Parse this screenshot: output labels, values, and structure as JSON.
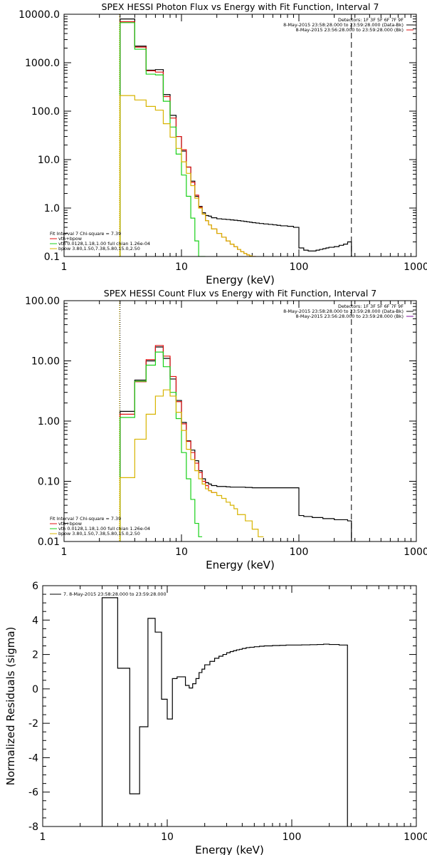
{
  "colors": {
    "background": "#ffffff",
    "axes": "#000000",
    "observed": "#000000",
    "total": "#e01010",
    "vth": "#18d018",
    "bpow": "#d8b400"
  },
  "chart_data": [
    {
      "type": "line",
      "title": "SPEX HESSI Photon Flux vs Energy with Fit Function, Interval 7",
      "xlabel": "Energy (keV)",
      "ylabel": "",
      "xscale": "log",
      "yscale": "log",
      "xlim": [
        1,
        1000
      ],
      "ylim": [
        0.1,
        10000
      ],
      "xticks": [
        "1",
        "10",
        "100",
        "1000"
      ],
      "yticks": [
        "0.1",
        "1.0",
        "10.0",
        "100.0",
        "1000.0",
        "10000.0"
      ],
      "vlines": [
        3,
        280
      ],
      "header_right": [
        "Detectors: 1F 3F 5F 6F 7F 9F",
        "8-May-2015 23:58:28.000 to 23:59:28.000 (Data-Bk)",
        "8-May-2015 23:56:28.000 to 23:59:28.000 (Bk)"
      ],
      "fit_text": [
        "Fit Interval 7   Chi-square = 7.39",
        "vth+bpow",
        "vth 0.0128,1.18,1.00  full chian 1.26e-04",
        "bpow 3.80,1.50,7.38,5.80,15.0,2.50"
      ],
      "series": [
        {
          "key": "observed",
          "color": "#000000",
          "edges": [
            3,
            3.5,
            4,
            4.5,
            5,
            5.5,
            6,
            6.5,
            7,
            7.5,
            8,
            8.5,
            9,
            10,
            11,
            12,
            13,
            14,
            15,
            16,
            17,
            18,
            20,
            22,
            24,
            26,
            28,
            30,
            32,
            34,
            36,
            38,
            40,
            43,
            46,
            50,
            55,
            60,
            65,
            70,
            80,
            90,
            100,
            110,
            120,
            130,
            140,
            150,
            160,
            170,
            180,
            200,
            220,
            240,
            260,
            280
          ],
          "values": [
            8000,
            8000,
            2200,
            2200,
            700,
            700,
            720,
            720,
            220,
            220,
            82,
            82,
            30,
            15,
            7,
            3.6,
            1.75,
            1.08,
            0.8,
            0.7,
            0.68,
            0.63,
            0.6,
            0.59,
            0.58,
            0.57,
            0.56,
            0.55,
            0.54,
            0.53,
            0.52,
            0.51,
            0.5,
            0.49,
            0.48,
            0.47,
            0.46,
            0.45,
            0.44,
            0.43,
            0.42,
            0.4,
            0.15,
            0.135,
            0.13,
            0.13,
            0.135,
            0.14,
            0.145,
            0.15,
            0.155,
            0.16,
            0.17,
            0.18,
            0.2
          ]
        },
        {
          "key": "total",
          "color": "#e01010",
          "edges": [
            3,
            3.5,
            4,
            4.5,
            5,
            5.5,
            6,
            6.5,
            7,
            7.5,
            8,
            8.5,
            9,
            10,
            11,
            12,
            13,
            14,
            15,
            16,
            17,
            18,
            20,
            22,
            24,
            26,
            28,
            30,
            32,
            34,
            36,
            38,
            40,
            43
          ],
          "values": [
            7000,
            7000,
            2100,
            2100,
            680,
            680,
            640,
            640,
            200,
            200,
            72,
            72,
            30,
            16,
            7,
            3.4,
            1.85,
            1.04,
            0.75,
            0.55,
            0.45,
            0.37,
            0.3,
            0.25,
            0.21,
            0.18,
            0.16,
            0.14,
            0.125,
            0.115,
            0.108,
            0.103,
            0.1
          ]
        },
        {
          "key": "vth",
          "color": "#18d018",
          "edges": [
            3,
            3.5,
            4,
            4.5,
            5,
            5.5,
            6,
            6.5,
            7,
            7.5,
            8,
            8.5,
            9,
            10,
            11,
            12,
            13,
            14,
            15,
            16
          ],
          "values": [
            6700,
            6700,
            1900,
            1900,
            580,
            580,
            560,
            560,
            160,
            160,
            47,
            47,
            13,
            4.8,
            1.75,
            0.62,
            0.21,
            0.1,
            0.1
          ]
        },
        {
          "key": "bpow",
          "color": "#d8b400",
          "edges": [
            3,
            3.5,
            4,
            4.5,
            5,
            5.5,
            6,
            6.5,
            7,
            7.5,
            8,
            8.5,
            9,
            10,
            11,
            12,
            13,
            14,
            15,
            16,
            17,
            18,
            20,
            22,
            24,
            26,
            28,
            30,
            32,
            34,
            36,
            38,
            40,
            43
          ],
          "values": [
            210,
            210,
            170,
            170,
            125,
            125,
            105,
            105,
            55,
            55,
            29,
            29,
            17,
            9,
            5.2,
            2.9,
            1.6,
            1.0,
            0.75,
            0.55,
            0.45,
            0.37,
            0.3,
            0.25,
            0.21,
            0.18,
            0.16,
            0.14,
            0.125,
            0.115,
            0.108,
            0.103,
            0.1
          ]
        }
      ]
    },
    {
      "type": "line",
      "title": "SPEX HESSI Count Flux vs Energy with Fit Function, Interval 7",
      "xlabel": "Energy (keV)",
      "ylabel": "",
      "xscale": "log",
      "yscale": "log",
      "xlim": [
        1,
        1000
      ],
      "ylim": [
        0.01,
        100
      ],
      "xticks": [
        "1",
        "10",
        "100",
        "1000"
      ],
      "yticks": [
        "0.01",
        "0.10",
        "1.00",
        "10.00",
        "100.00"
      ],
      "vlines": [
        3,
        280
      ],
      "header_right": [
        "Detectors: 1F 3F 5F 6F 7F 9F",
        "8-May-2015 23:58:28.000 to 23:59:28.000 (Data-Bk)",
        "8-May-2015 23:56:28.000 to 23:59:28.000 (Bk)"
      ],
      "fit_text": [
        "Fit Interval 7   Chi-square = 7.39",
        "vth+bpow",
        "vth 0.0128,1.18,1.00  full chian 1.26e-04",
        "bpow 3.80,1.50,7.38,5.80,15.0,2.50"
      ],
      "series": [
        {
          "key": "observed",
          "color": "#000000",
          "edges": [
            3,
            4,
            5,
            6,
            6.5,
            7,
            7.5,
            8,
            8.5,
            9,
            10,
            11,
            12,
            13,
            14,
            15,
            16,
            17,
            18,
            20,
            22,
            24,
            26,
            28,
            30,
            35,
            40,
            45,
            50,
            60,
            70,
            80,
            90,
            100,
            110,
            120,
            130,
            140,
            150,
            160,
            170,
            180,
            200,
            220,
            240,
            260,
            280
          ],
          "values": [
            1.45,
            4.8,
            10,
            17,
            17,
            11,
            11,
            5,
            5,
            2.2,
            0.95,
            0.47,
            0.33,
            0.22,
            0.15,
            0.11,
            0.095,
            0.09,
            0.085,
            0.082,
            0.082,
            0.081,
            0.08,
            0.08,
            0.08,
            0.079,
            0.078,
            0.078,
            0.078,
            0.078,
            0.078,
            0.078,
            0.078,
            0.027,
            0.026,
            0.026,
            0.025,
            0.025,
            0.025,
            0.024,
            0.024,
            0.024,
            0.023,
            0.023,
            0.023,
            0.022
          ]
        },
        {
          "key": "total",
          "color": "#e01010",
          "edges": [
            3,
            4,
            5,
            6,
            6.5,
            7,
            7.5,
            8,
            8.5,
            9,
            10,
            11,
            12,
            13,
            14,
            15,
            16,
            17,
            18,
            20
          ],
          "values": [
            1.3,
            4.5,
            10.5,
            18,
            18,
            12,
            12,
            5.5,
            5.5,
            2.1,
            0.9,
            0.46,
            0.3,
            0.2,
            0.14,
            0.1,
            0.085,
            0.07,
            0.065
          ]
        },
        {
          "key": "vth",
          "color": "#18d018",
          "edges": [
            3,
            4,
            5,
            6,
            6.5,
            7,
            7.5,
            8,
            8.5,
            9,
            10,
            11,
            12,
            13,
            14,
            15
          ],
          "values": [
            1.15,
            4.6,
            8.5,
            14,
            14,
            8,
            8,
            3,
            3,
            1.1,
            0.3,
            0.11,
            0.05,
            0.02,
            0.012
          ]
        },
        {
          "key": "bpow",
          "color": "#d8b400",
          "edges": [
            3,
            4,
            5,
            6,
            6.5,
            7,
            7.5,
            8,
            8.5,
            9,
            10,
            11,
            12,
            13,
            14,
            15,
            16,
            17,
            18,
            20,
            22,
            24,
            26,
            28,
            30,
            35,
            40,
            45,
            50
          ],
          "values": [
            0.115,
            0.5,
            1.3,
            2.6,
            2.6,
            3.3,
            3.3,
            2.6,
            2.6,
            1.4,
            0.7,
            0.34,
            0.23,
            0.15,
            0.11,
            0.09,
            0.075,
            0.07,
            0.065,
            0.058,
            0.052,
            0.045,
            0.04,
            0.035,
            0.028,
            0.022,
            0.016,
            0.012
          ]
        }
      ]
    },
    {
      "type": "line",
      "title": "",
      "xlabel": "Energy (keV)",
      "ylabel": "Normalized Residuals (sigma)",
      "xscale": "log",
      "yscale": "linear",
      "xlim": [
        1,
        1000
      ],
      "ylim": [
        -8,
        6
      ],
      "xticks": [
        "1",
        "10",
        "100",
        "1000"
      ],
      "yticks": [
        "-8",
        "-6",
        "-4",
        "-2",
        "0",
        "2",
        "4",
        "6"
      ],
      "legend_text": "7. 8-May-2015 23:58:28.000 to 23:59:28.000",
      "series": [
        {
          "key": "residuals",
          "color": "#000000",
          "edges": [
            3,
            4,
            5,
            6,
            6.5,
            7,
            7.5,
            8,
            8.5,
            9,
            10,
            11,
            12,
            13,
            14,
            15,
            16,
            17,
            18,
            19,
            20,
            22,
            24,
            26,
            28,
            30,
            32,
            34,
            36,
            38,
            40,
            43,
            46,
            50,
            55,
            60,
            70,
            80,
            90,
            100,
            120,
            140,
            160,
            180,
            200,
            240,
            280
          ],
          "values": [
            5.3,
            1.2,
            -6.1,
            -2.2,
            -2.2,
            4.1,
            4.1,
            3.3,
            3.3,
            -0.6,
            -1.75,
            0.6,
            0.7,
            0.7,
            0.2,
            0.05,
            0.3,
            0.6,
            0.95,
            1.15,
            1.4,
            1.6,
            1.78,
            1.9,
            2.0,
            2.1,
            2.17,
            2.22,
            2.27,
            2.3,
            2.35,
            2.4,
            2.42,
            2.45,
            2.48,
            2.5,
            2.52,
            2.53,
            2.55,
            2.55,
            2.56,
            2.57,
            2.58,
            2.6,
            2.58,
            2.55
          ]
        }
      ]
    }
  ]
}
